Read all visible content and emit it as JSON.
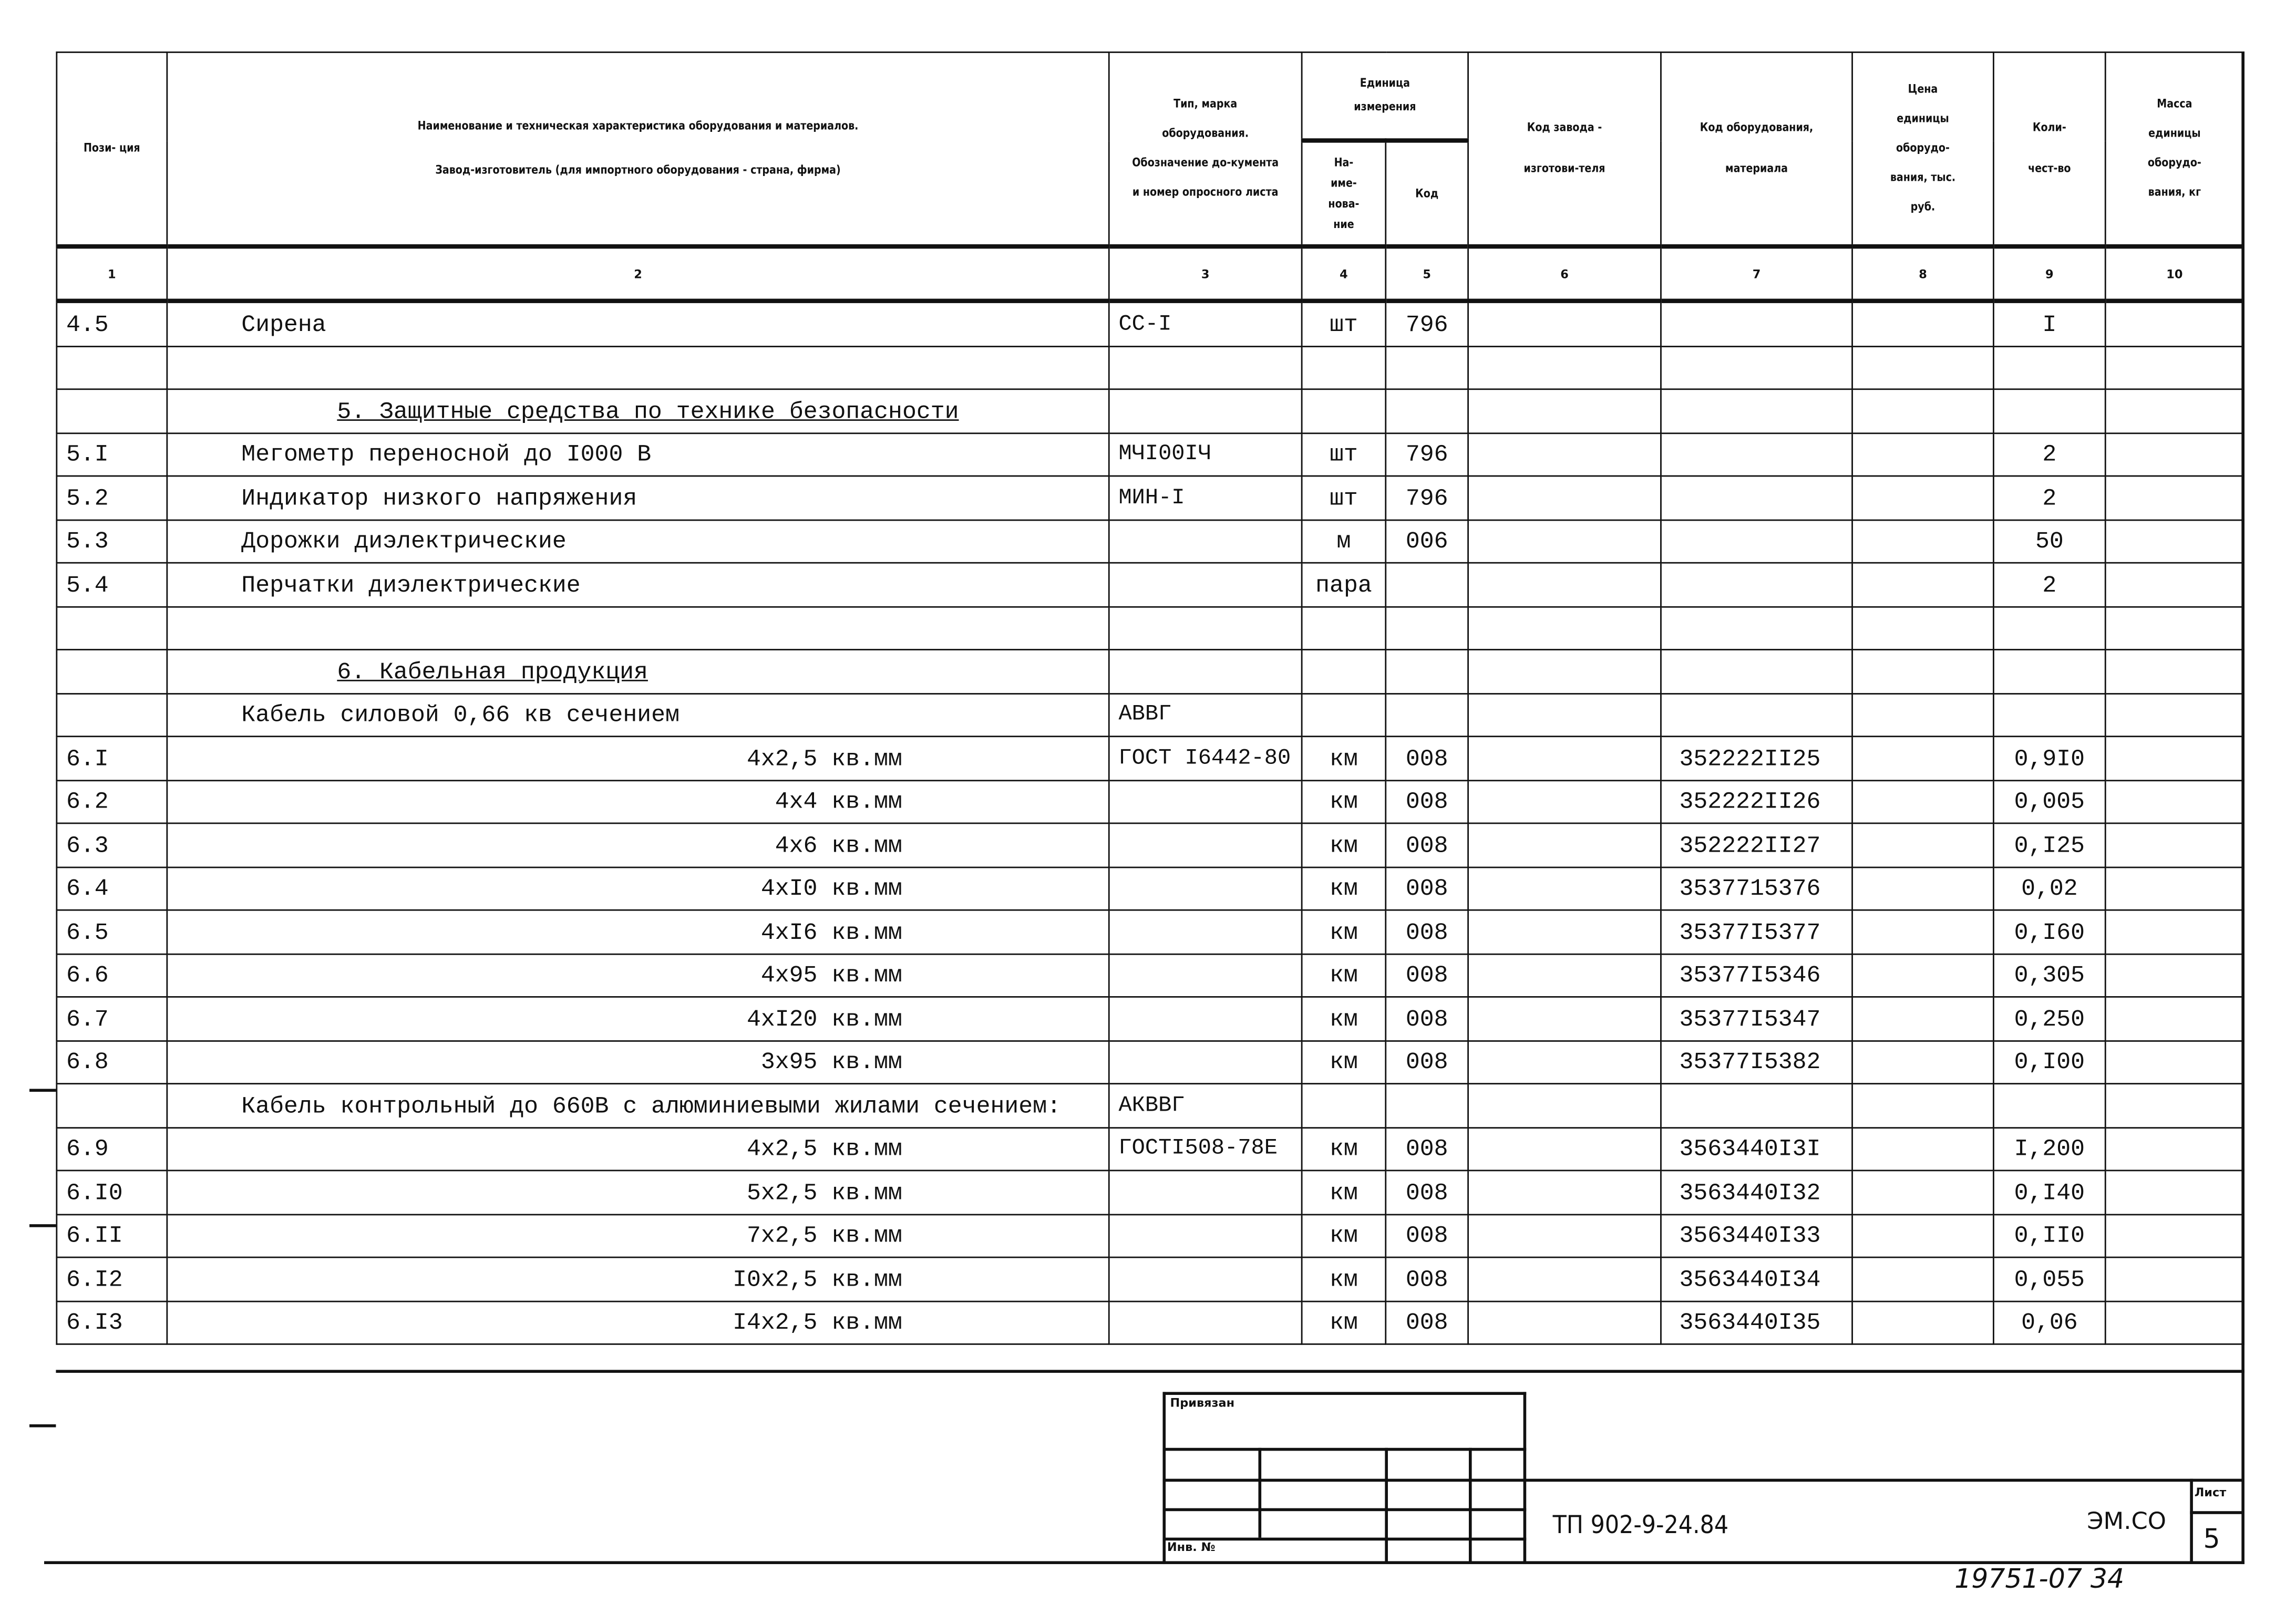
{
  "header": {
    "col1": "Пози-\nция",
    "col2_line1": "Наименование и техническая характеристика оборудования и материалов.",
    "col2_line2": "Завод-изготовитель (для импортного оборудования - страна, фирма)",
    "col3": "Тип, марка оборудования. Обозначение до-кумента и номер опросного листа",
    "col_unit": "Единица измерения",
    "col4": "На-име-нова-ние",
    "col5": "Код",
    "col6": "Код завода - изготови-теля",
    "col7": "Код оборудования, материала",
    "col8": "Цена единицы оборудо-вания, тыс. руб.",
    "col9": "Коли-чест-во",
    "col10": "Масса единицы оборудо-вания, кг",
    "numbers": [
      "1",
      "2",
      "3",
      "4",
      "5",
      "6",
      "7",
      "8",
      "9",
      "10"
    ]
  },
  "rows": [
    {
      "pos": "4.5",
      "name": "Сирена",
      "style": "indent",
      "type": "СС-I",
      "unit": "шт",
      "code": "796",
      "mat": "",
      "qty": "I"
    },
    {
      "pos": "",
      "name": "",
      "style": "",
      "type": "",
      "unit": "",
      "code": "",
      "mat": "",
      "qty": ""
    },
    {
      "pos": "",
      "name": "5. Защитные средства по технике безопасности",
      "style": "section",
      "type": "",
      "unit": "",
      "code": "",
      "mat": "",
      "qty": ""
    },
    {
      "pos": "5.I",
      "name": "Мегометр переносной до I000 В",
      "style": "indent",
      "type": "МЧI00IЧ",
      "unit": "шт",
      "code": "796",
      "mat": "",
      "qty": "2"
    },
    {
      "pos": "5.2",
      "name": "Индикатор низкого напряжения",
      "style": "indent",
      "type": "МИН-I",
      "unit": "шт",
      "code": "796",
      "mat": "",
      "qty": "2"
    },
    {
      "pos": "5.3",
      "name": "Дорожки диэлектрические",
      "style": "indent",
      "type": "",
      "unit": "м",
      "code": "006",
      "mat": "",
      "qty": "50"
    },
    {
      "pos": "5.4",
      "name": "Перчатки диэлектрические",
      "style": "indent",
      "type": "",
      "unit": "пара",
      "code": "",
      "mat": "",
      "qty": "2"
    },
    {
      "pos": "",
      "name": "",
      "style": "",
      "type": "",
      "unit": "",
      "code": "",
      "mat": "",
      "qty": ""
    },
    {
      "pos": "",
      "name": "6. Кабельная продукция",
      "style": "section",
      "type": "",
      "unit": "",
      "code": "",
      "mat": "",
      "qty": ""
    },
    {
      "pos": "",
      "name": "Кабель силовой 0,66 кв сечением",
      "style": "indent",
      "type": "АВВГ",
      "unit": "",
      "code": "",
      "mat": "",
      "qty": ""
    },
    {
      "pos": "6.I",
      "name": "4х2,5 кв.мм",
      "style": "right",
      "type": "ГОСТ I6442-80",
      "unit": "км",
      "code": "008",
      "mat": "352222II25",
      "qty": "0,9I0"
    },
    {
      "pos": "6.2",
      "name": "4х4  кв.мм",
      "style": "right",
      "type": "",
      "unit": "км",
      "code": "008",
      "mat": "352222II26",
      "qty": "0,005"
    },
    {
      "pos": "6.3",
      "name": "4х6  кв.мм",
      "style": "right",
      "type": "",
      "unit": "км",
      "code": "008",
      "mat": "352222II27",
      "qty": "0,I25"
    },
    {
      "pos": "6.4",
      "name": "4хI0 кв.мм",
      "style": "right",
      "type": "",
      "unit": "км",
      "code": "008",
      "mat": "3537715376",
      "qty": "0,02"
    },
    {
      "pos": "6.5",
      "name": "4хI6 кв.мм",
      "style": "right",
      "type": "",
      "unit": "км",
      "code": "008",
      "mat": "35377I5377",
      "qty": "0,I60"
    },
    {
      "pos": "6.6",
      "name": "4х95 кв.мм",
      "style": "right",
      "type": "",
      "unit": "км",
      "code": "008",
      "mat": "35377I5346",
      "qty": "0,305"
    },
    {
      "pos": "6.7",
      "name": "4хI20 кв.мм",
      "style": "right",
      "type": "",
      "unit": "км",
      "code": "008",
      "mat": "35377I5347",
      "qty": "0,250"
    },
    {
      "pos": "6.8",
      "name": "3х95 кв.мм",
      "style": "right",
      "type": "",
      "unit": "км",
      "code": "008",
      "mat": "35377I5382",
      "qty": "0,I00"
    },
    {
      "pos": "",
      "name": "Кабель контрольный до 660В с алюминиевыми жилами сечением:",
      "style": "indent",
      "type": "АКВВГ",
      "unit": "",
      "code": "",
      "mat": "",
      "qty": ""
    },
    {
      "pos": "6.9",
      "name": "4х2,5 кв.мм",
      "style": "right",
      "type": "ГОСТI508-78Е",
      "unit": "км",
      "code": "008",
      "mat": "3563440I3I",
      "qty": "I,200"
    },
    {
      "pos": "6.I0",
      "name": "5х2,5 кв.мм",
      "style": "right",
      "type": "",
      "unit": "км",
      "code": "008",
      "mat": "3563440I32",
      "qty": "0,I40"
    },
    {
      "pos": "6.II",
      "name": "7х2,5 кв.мм",
      "style": "right",
      "type": "",
      "unit": "км",
      "code": "008",
      "mat": "3563440I33",
      "qty": "0,II0"
    },
    {
      "pos": "6.I2",
      "name": "I0х2,5 кв.мм",
      "style": "right",
      "type": "",
      "unit": "км",
      "code": "008",
      "mat": "3563440I34",
      "qty": "0,055"
    },
    {
      "pos": "6.I3",
      "name": "I4х2,5 кв.мм",
      "style": "right",
      "type": "",
      "unit": "км",
      "code": "008",
      "mat": "3563440I35",
      "qty": "0,06"
    }
  ],
  "title_block": {
    "linked": "Привязан",
    "inv_no": "Инв. №",
    "doc_code": "ТП 902-9-24.84",
    "mark": "ЭМ.СО",
    "sheet_label": "Лист",
    "sheet_no": "5"
  },
  "handwritten_note": "19751-07 34"
}
